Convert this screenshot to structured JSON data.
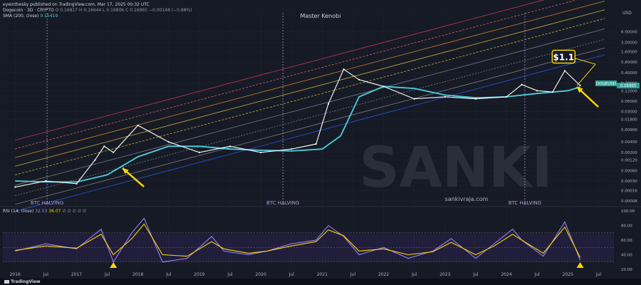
{
  "header": {
    "published": "eyeinthesky published on TradingView.com, Mar 17, 2025 00:32 UTC",
    "symbol_line": "Dogecoin · 3D · CRYPTO",
    "ohlc": "O 0.16817  H 0.16944  L 0.16806  C 0.16965  −0.00148 (−0.88%)",
    "sma_label": "SMA (200, close)",
    "sma_value": "0.15419",
    "rsi_label": "RSI (14, close)",
    "rsi_value": "32.53",
    "rsi_ma_value": "36.07",
    "rsi_rest": "∅ ∅ ∅ ∅ ∅"
  },
  "branding": {
    "watermark": "SANKI",
    "site": "sankivraja.com",
    "center_title": "Master Kenobi",
    "footer_logo": "TradingView"
  },
  "annotations": {
    "target_label": "$1.1",
    "halving_label": "BTC HALVING"
  },
  "colors": {
    "background": "#161a25",
    "price": "#ffffff",
    "sma": "#4dd0e1",
    "rsi": "#9c8cff",
    "rsi_ma": "#ffd600",
    "target_box": "#ffd600",
    "current_price_tag": "#26a69a",
    "channel_top": "#e0405a",
    "channel_dash": "#ef6f6f",
    "channel_orange": "#f0932b",
    "channel_yellow": "#f5c542",
    "channel_gray": "#8a8f99",
    "channel_blue": "#2962ff"
  },
  "chart_data": [
    {
      "type": "line",
      "scale": "log",
      "y_axis_title": "USD",
      "x_tick_labels": [
        "2016",
        "Jul",
        "2017",
        "Jul",
        "2018",
        "Jul",
        "2019",
        "Jul",
        "2020",
        "Jul",
        "2021",
        "Jul",
        "2022",
        "Jul",
        "2023",
        "Jul",
        "2024",
        "Jul",
        "2025",
        "Jul"
      ],
      "y_tick_labels": [
        "6.00000",
        "3.00000",
        "1.60000",
        "0.80000",
        "0.40000",
        "0.20000",
        "0.12000",
        "0.06000",
        "0.03000",
        "0.01800",
        "0.00900",
        "0.00400",
        "0.00200",
        "0.00120",
        "0.00060",
        "0.00030",
        "0.00016",
        "0.00008"
      ],
      "ylim": [
        6e-05,
        12
      ],
      "current_price_label": "DOGEUSD",
      "current_price": "0.16965",
      "series": [
        {
          "name": "Dogecoin",
          "x": [
            2016.0,
            2016.5,
            2017.0,
            2017.3,
            2017.45,
            2017.6,
            2018.0,
            2018.5,
            2019.0,
            2019.5,
            2020.0,
            2020.5,
            2020.9,
            2021.1,
            2021.35,
            2021.6,
            2022.0,
            2022.5,
            2023.0,
            2023.5,
            2024.0,
            2024.25,
            2024.5,
            2024.75,
            2024.95,
            2025.2
          ],
          "y": [
            0.0002,
            0.0003,
            0.00025,
            0.0012,
            0.003,
            0.002,
            0.012,
            0.004,
            0.002,
            0.003,
            0.002,
            0.0025,
            0.0035,
            0.05,
            0.5,
            0.25,
            0.16,
            0.07,
            0.08,
            0.07,
            0.08,
            0.18,
            0.12,
            0.11,
            0.45,
            0.17
          ]
        },
        {
          "name": "SMA (200, close)",
          "x": [
            2016.0,
            2016.5,
            2017.0,
            2017.5,
            2018.0,
            2018.5,
            2019.0,
            2019.5,
            2020.0,
            2020.5,
            2021.0,
            2021.3,
            2021.6,
            2022.0,
            2022.5,
            2023.0,
            2023.5,
            2024.0,
            2024.5,
            2025.0,
            2025.2
          ],
          "y": [
            0.0003,
            0.00028,
            0.00028,
            0.00045,
            0.0015,
            0.003,
            0.003,
            0.0025,
            0.0023,
            0.0022,
            0.0025,
            0.006,
            0.08,
            0.16,
            0.14,
            0.09,
            0.075,
            0.08,
            0.1,
            0.12,
            0.154
          ]
        }
      ],
      "halvings": [
        2016.52,
        2020.36,
        2024.3
      ],
      "annotations": [
        {
          "text": "$1.1",
          "x": 2025.0,
          "y": 1.1
        }
      ]
    },
    {
      "type": "line",
      "title": "RSI (14, close)",
      "ylim": [
        20,
        100
      ],
      "y_tick_labels": [
        "100.00",
        "80.00",
        "60.00",
        "40.00",
        "20.00"
      ],
      "series": [
        {
          "name": "RSI",
          "x": [
            2016.0,
            2016.5,
            2017.0,
            2017.4,
            2017.6,
            2017.9,
            2018.1,
            2018.4,
            2018.8,
            2019.2,
            2019.4,
            2019.8,
            2020.1,
            2020.5,
            2020.9,
            2021.1,
            2021.35,
            2021.6,
            2022.0,
            2022.4,
            2022.8,
            2023.1,
            2023.5,
            2023.8,
            2024.1,
            2024.25,
            2024.6,
            2024.95,
            2025.2
          ],
          "y": [
            45,
            55,
            48,
            75,
            30,
            70,
            90,
            30,
            35,
            65,
            45,
            40,
            45,
            55,
            60,
            80,
            65,
            40,
            50,
            35,
            45,
            62,
            35,
            55,
            75,
            60,
            38,
            85,
            32.53
          ]
        },
        {
          "name": "RSI MA",
          "x": [
            2016.0,
            2016.5,
            2017.0,
            2017.4,
            2017.6,
            2017.9,
            2018.1,
            2018.4,
            2018.8,
            2019.2,
            2019.4,
            2019.8,
            2020.1,
            2020.5,
            2020.9,
            2021.1,
            2021.35,
            2021.6,
            2022.0,
            2022.4,
            2022.8,
            2023.1,
            2023.5,
            2023.8,
            2024.1,
            2024.25,
            2024.6,
            2024.95,
            2025.2
          ],
          "y": [
            46,
            52,
            49,
            68,
            40,
            62,
            82,
            40,
            38,
            58,
            48,
            42,
            45,
            52,
            58,
            74,
            66,
            45,
            48,
            40,
            44,
            57,
            40,
            52,
            68,
            60,
            42,
            78,
            36.07
          ]
        }
      ]
    }
  ]
}
